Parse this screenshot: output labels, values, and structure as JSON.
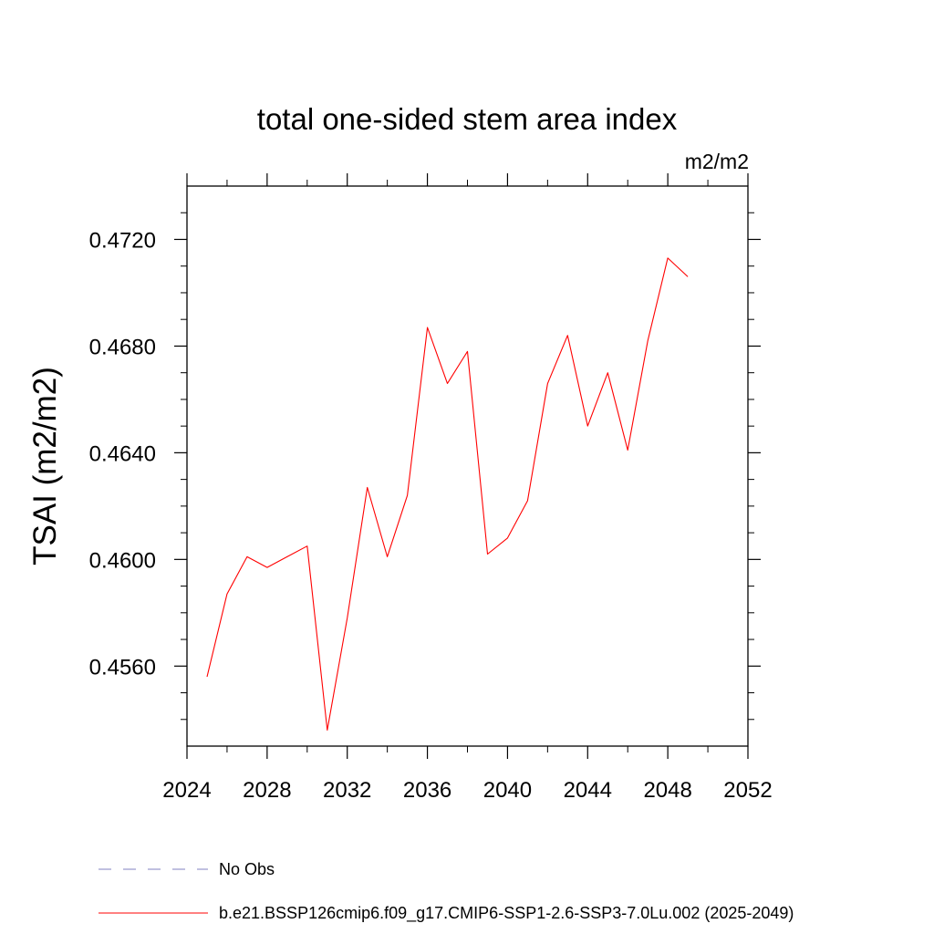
{
  "chart_data": {
    "type": "line",
    "title": "total one-sided stem area index",
    "units": "m2/m2",
    "xlabel": "",
    "ylabel": "TSAI  (m2/m2)",
    "xlim": [
      2024,
      2052
    ],
    "ylim": [
      0.453,
      0.474
    ],
    "x_ticks": [
      2024,
      2028,
      2032,
      2036,
      2040,
      2044,
      2048,
      2052
    ],
    "x_tick_labels": [
      "2024",
      "2028",
      "2032",
      "2036",
      "2040",
      "2044",
      "2048",
      "2052"
    ],
    "y_ticks": [
      0.456,
      0.46,
      0.464,
      0.468,
      0.472
    ],
    "y_tick_labels": [
      "0.4560",
      "0.4600",
      "0.4640",
      "0.4680",
      "0.4720"
    ],
    "grid": false,
    "legend_position": "bottom",
    "series": [
      {
        "name": "b.e21.BSSP126cmip6.f09_g17.CMIP6-SSP1-2.6-SSP3-7.0Lu.002 (2025-2049)",
        "color": "#ff0000",
        "style": "solid",
        "x": [
          2025,
          2026,
          2027,
          2028,
          2029,
          2030,
          2031,
          2032,
          2033,
          2034,
          2035,
          2036,
          2037,
          2038,
          2039,
          2040,
          2041,
          2042,
          2043,
          2044,
          2045,
          2046,
          2047,
          2048,
          2049
        ],
        "y": [
          0.4556,
          0.4587,
          0.4601,
          0.4597,
          0.4601,
          0.4605,
          0.4536,
          0.4578,
          0.4627,
          0.4601,
          0.4624,
          0.4687,
          0.4666,
          0.4678,
          0.4602,
          0.4608,
          0.4622,
          0.4666,
          0.4684,
          0.465,
          0.467,
          0.4641,
          0.4682,
          0.4713,
          0.4706
        ]
      }
    ],
    "legend": [
      {
        "label": "No Obs",
        "color": "#8080c0",
        "style": "dashed"
      },
      {
        "label": "b.e21.BSSP126cmip6.f09_g17.CMIP6-SSP1-2.6-SSP3-7.0Lu.002 (2025-2049)",
        "color": "#ff0000",
        "style": "solid"
      }
    ]
  }
}
